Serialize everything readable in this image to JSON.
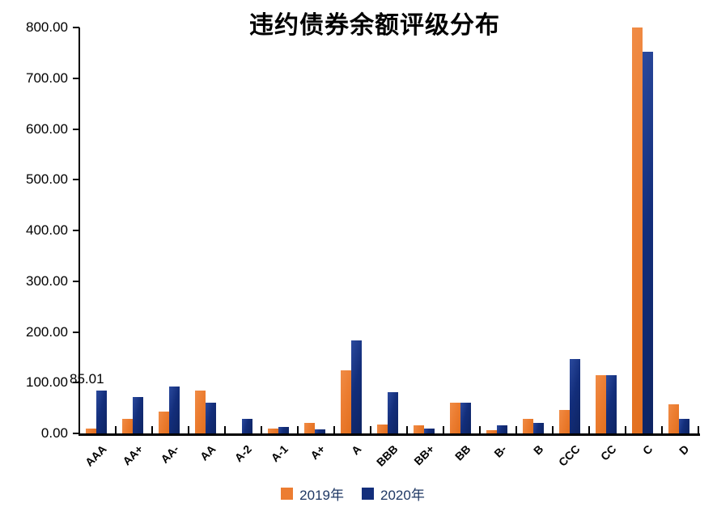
{
  "chart_data": {
    "type": "bar",
    "title": "违约债券余额评级分布",
    "categories": [
      "AAA",
      "AA+",
      "AA-",
      "AA",
      "A-2",
      "A-1",
      "A+",
      "A",
      "BBB",
      "BB+",
      "BB",
      "B-",
      "B",
      "CCC",
      "CC",
      "C",
      "D"
    ],
    "series": [
      {
        "name": "2019年",
        "color": "#EC7D31",
        "values": [
          10,
          29,
          43,
          85,
          0,
          10,
          21,
          125,
          18,
          16,
          61,
          7,
          28,
          47,
          114,
          800,
          58
        ]
      },
      {
        "name": "2020年",
        "color": "#132E7B",
        "values": [
          85.01,
          72,
          93,
          60,
          28,
          13,
          8,
          183,
          81,
          9,
          60,
          16,
          21,
          146,
          115,
          752,
          28
        ]
      }
    ],
    "ylim": [
      0,
      800
    ],
    "y_tick_step": 100,
    "y_tick_labels": [
      "800.00",
      "700.00",
      "600.00",
      "500.00",
      "400.00",
      "300.00",
      "200.00",
      "100.00",
      "0.00"
    ],
    "grid": false,
    "legend_position": "bottom",
    "annotation": {
      "text": "85.01",
      "series": "2020年",
      "category": "AAA"
    }
  }
}
